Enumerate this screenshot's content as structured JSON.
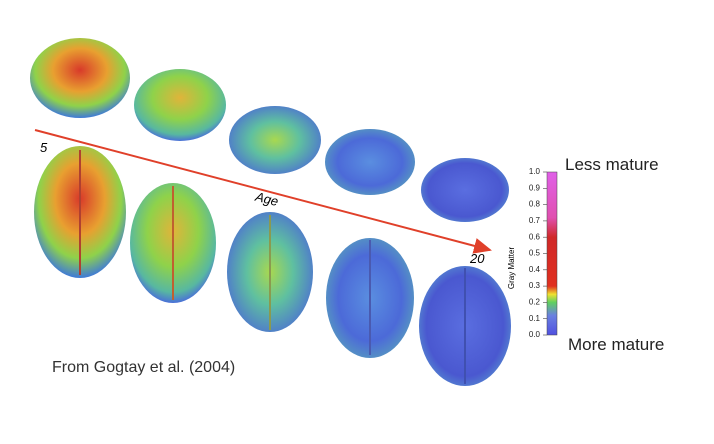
{
  "caption": "From Gogtay et al. (2004)",
  "arrow": {
    "start_label": "5",
    "axis_label": "Age",
    "end_label": "20"
  },
  "legend": {
    "top_label": "Less mature",
    "bottom_label": "More mature"
  },
  "colorbar": {
    "label": "Gray Matter",
    "range": [
      0,
      1
    ],
    "ticks": [
      {
        "value": 0,
        "label": "0.0"
      },
      {
        "value": 0.1,
        "label": "0.1"
      },
      {
        "value": 0.2,
        "label": "0.2"
      },
      {
        "value": 0.3,
        "label": "0.3"
      },
      {
        "value": 0.4,
        "label": "0.4"
      },
      {
        "value": 0.5,
        "label": "0.5"
      },
      {
        "value": 0.6,
        "label": "0.6"
      },
      {
        "value": 0.7,
        "label": "0.7"
      },
      {
        "value": 0.8,
        "label": "0.8"
      },
      {
        "value": 0.9,
        "label": "0.9"
      },
      {
        "value": 1,
        "label": "1.0"
      }
    ]
  }
}
